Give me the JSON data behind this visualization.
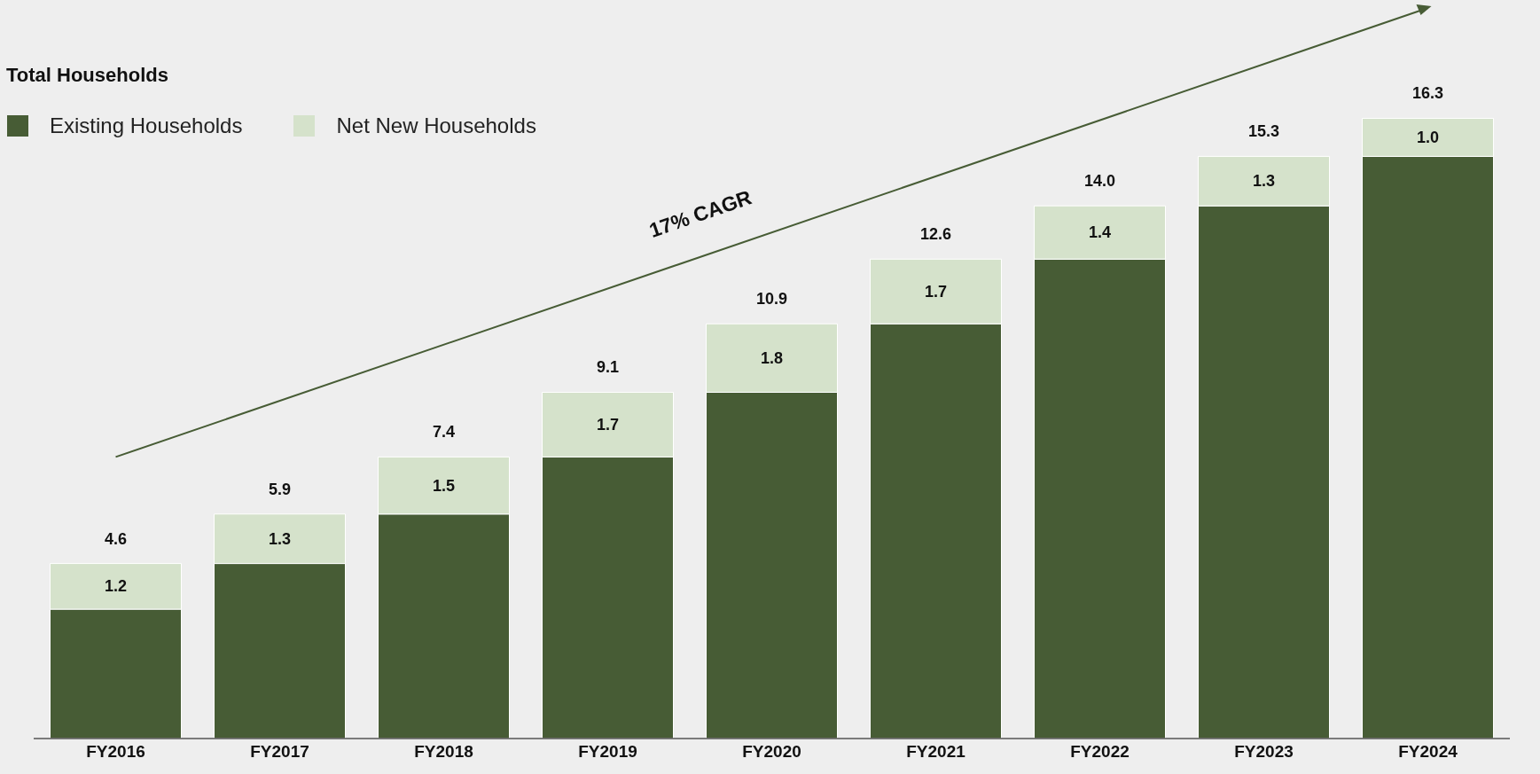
{
  "chart_data": {
    "type": "bar",
    "title": "Total Households",
    "stacked": true,
    "categories": [
      "FY2016",
      "FY2017",
      "FY2018",
      "FY2019",
      "FY2020",
      "FY2021",
      "FY2022",
      "FY2023",
      "FY2024"
    ],
    "series": [
      {
        "name": "Existing Households",
        "color": "#475c35",
        "values": [
          3.4,
          4.6,
          5.9,
          7.4,
          9.1,
          10.9,
          12.6,
          14.0,
          15.3
        ]
      },
      {
        "name": "Net New Households",
        "color": "#d5e2cb",
        "values": [
          1.2,
          1.3,
          1.5,
          1.7,
          1.8,
          1.7,
          1.4,
          1.3,
          1.0
        ],
        "value_labels": [
          "1.2",
          "1.3",
          "1.5",
          "1.7",
          "1.8",
          "1.7",
          "1.4",
          "1.3",
          "1.0"
        ]
      },
      {
        "type": "line",
        "x": [
          "FY2016",
          "FY2024"
        ],
        "values": [
          7.4,
          19.2
        ],
        "color": "#475c35",
        "line_style": "solid"
      }
    ],
    "totals": [
      "4.6",
      "5.9",
      "7.4",
      "9.1",
      "10.9",
      "12.6",
      "14.0",
      "15.3",
      "16.3"
    ],
    "annotations": [
      "17% CAGR"
    ],
    "legend": "top left",
    "grid": false
  }
}
